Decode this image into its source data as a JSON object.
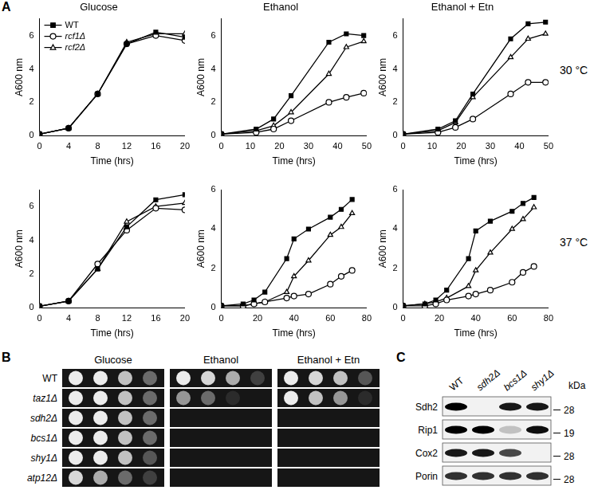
{
  "panel_labels": [
    "A",
    "B",
    "C"
  ],
  "chart_data": [
    {
      "type": "line",
      "title": "Glucose",
      "x_label": "Time (hrs)",
      "y_label": "A600 nm",
      "x": [
        0,
        4,
        8,
        12,
        16,
        20
      ],
      "xlim": [
        0,
        20
      ],
      "xticks": [
        0,
        4,
        8,
        12,
        16,
        20
      ],
      "ylim": [
        0,
        7
      ],
      "yticks": [
        0,
        2,
        4,
        6
      ],
      "grid": false,
      "legend": "upper left",
      "series": [
        {
          "name": "WT",
          "color": "#000000",
          "marker": "filled_square",
          "values": [
            0.1,
            0.45,
            2.5,
            5.5,
            6.2,
            5.9
          ]
        },
        {
          "name": "rcf1Δ",
          "color": "#000000",
          "marker": "open_circle",
          "values": [
            0.1,
            0.45,
            2.5,
            5.5,
            6.0,
            5.7
          ]
        },
        {
          "name": "rcf2Δ",
          "color": "#000000",
          "marker": "open_triangle",
          "values": [
            0.1,
            0.45,
            2.5,
            5.6,
            6.1,
            6.1
          ]
        }
      ]
    },
    {
      "type": "line",
      "title": "Ethanol",
      "x_label": "Time (hrs)",
      "y_label": "A600 nm",
      "x": [
        0,
        12,
        18,
        24,
        37,
        43,
        49
      ],
      "xlim": [
        0,
        50
      ],
      "xticks": [
        0,
        10,
        20,
        30,
        40,
        50
      ],
      "ylim": [
        0,
        7
      ],
      "yticks": [
        0,
        2,
        4,
        6
      ],
      "grid": false,
      "series": [
        {
          "name": "WT",
          "color": "#000000",
          "marker": "filled_square",
          "values": [
            0.1,
            0.4,
            1.0,
            2.4,
            5.6,
            6.1,
            6.0
          ]
        },
        {
          "name": "rcf1Δ",
          "color": "#000000",
          "marker": "open_circle",
          "values": [
            0.1,
            0.2,
            0.4,
            0.9,
            2.0,
            2.3,
            2.55
          ]
        },
        {
          "name": "rcf2Δ",
          "color": "#000000",
          "marker": "open_triangle",
          "values": [
            0.1,
            0.3,
            0.6,
            1.4,
            3.7,
            5.3,
            5.65
          ]
        }
      ]
    },
    {
      "type": "line",
      "title": "Ethanol + Etn",
      "x_label": "Time (hrs)",
      "y_label": "A600 nm",
      "annotation": "30 °C",
      "x": [
        0,
        12,
        18,
        24,
        37,
        43,
        49
      ],
      "xlim": [
        0,
        50
      ],
      "xticks": [
        0,
        10,
        20,
        30,
        40,
        50
      ],
      "ylim": [
        0,
        7
      ],
      "yticks": [
        0,
        2,
        4,
        6
      ],
      "grid": false,
      "series": [
        {
          "name": "WT",
          "color": "#000000",
          "marker": "filled_square",
          "values": [
            0.1,
            0.4,
            0.9,
            2.5,
            5.8,
            6.7,
            6.8
          ]
        },
        {
          "name": "rcf1Δ",
          "color": "#000000",
          "marker": "open_circle",
          "values": [
            0.1,
            0.2,
            0.5,
            1.0,
            2.5,
            3.2,
            3.2
          ]
        },
        {
          "name": "rcf2Δ",
          "color": "#000000",
          "marker": "open_triangle",
          "values": [
            0.1,
            0.3,
            0.8,
            2.3,
            4.7,
            5.8,
            6.1
          ]
        }
      ]
    },
    {
      "type": "line",
      "x_label": "Time (hrs)",
      "y_label": "A600 nm",
      "x": [
        0,
        4,
        8,
        12,
        16,
        20
      ],
      "xlim": [
        0,
        20
      ],
      "xticks": [
        0,
        4,
        8,
        12,
        16,
        20
      ],
      "ylim": [
        0,
        7
      ],
      "yticks": [
        0,
        2,
        4,
        6
      ],
      "grid": false,
      "series": [
        {
          "name": "WT",
          "color": "#000000",
          "marker": "filled_square",
          "values": [
            0.1,
            0.4,
            2.3,
            4.8,
            6.4,
            6.7
          ]
        },
        {
          "name": "rcf1Δ",
          "color": "#000000",
          "marker": "open_circle",
          "values": [
            0.1,
            0.4,
            2.6,
            4.6,
            5.9,
            5.8
          ]
        },
        {
          "name": "rcf2Δ",
          "color": "#000000",
          "marker": "open_triangle",
          "values": [
            0.1,
            0.4,
            2.3,
            5.1,
            6.0,
            6.2
          ]
        }
      ]
    },
    {
      "type": "line",
      "x_label": "Time (hrs)",
      "y_label": "A600 nm",
      "x": [
        0,
        12,
        18,
        24,
        36,
        40,
        48,
        60,
        66,
        72
      ],
      "xlim": [
        0,
        80
      ],
      "xticks": [
        0,
        20,
        40,
        60,
        80
      ],
      "ylim": [
        0,
        6
      ],
      "yticks": [
        0,
        2,
        4,
        6
      ],
      "grid": false,
      "series": [
        {
          "name": "WT",
          "color": "#000000",
          "marker": "filled_square",
          "values": [
            0.1,
            0.2,
            0.4,
            0.8,
            2.5,
            3.5,
            4.0,
            4.6,
            5.0,
            5.5
          ]
        },
        {
          "name": "rcf1Δ",
          "color": "#000000",
          "marker": "open_circle",
          "values": [
            0.1,
            0.1,
            0.2,
            0.3,
            0.5,
            0.6,
            0.7,
            1.2,
            1.6,
            1.9
          ]
        },
        {
          "name": "rcf2Δ",
          "color": "#000000",
          "marker": "open_triangle",
          "values": [
            0.1,
            0.1,
            0.2,
            0.3,
            0.8,
            1.6,
            2.4,
            3.7,
            4.1,
            4.8
          ]
        }
      ]
    },
    {
      "type": "line",
      "x_label": "Time (hrs)",
      "y_label": "A600 nm",
      "annotation": "37 °C",
      "x": [
        0,
        12,
        18,
        24,
        36,
        40,
        48,
        60,
        66,
        72
      ],
      "xlim": [
        0,
        80
      ],
      "xticks": [
        0,
        20,
        40,
        60,
        80
      ],
      "ylim": [
        0,
        6
      ],
      "yticks": [
        0,
        2,
        4,
        6
      ],
      "grid": false,
      "series": [
        {
          "name": "WT",
          "color": "#000000",
          "marker": "filled_square",
          "values": [
            0.1,
            0.2,
            0.4,
            0.9,
            2.5,
            3.9,
            4.4,
            4.9,
            5.3,
            5.6
          ]
        },
        {
          "name": "rcf1Δ",
          "color": "#000000",
          "marker": "open_circle",
          "values": [
            0.1,
            0.1,
            0.2,
            0.4,
            0.6,
            0.7,
            0.9,
            1.3,
            1.8,
            2.1
          ]
        },
        {
          "name": "rcf2Δ",
          "color": "#000000",
          "marker": "open_triangle",
          "values": [
            0.1,
            0.2,
            0.3,
            0.5,
            1.1,
            1.9,
            2.8,
            4.0,
            4.5,
            5.1
          ]
        }
      ]
    }
  ],
  "spot_assay": {
    "conditions": [
      "Glucose",
      "Ethanol",
      "Ethanol + Etn"
    ],
    "strains": [
      {
        "name": "WT",
        "growth": [
          [
            1,
            1,
            0.8,
            0.4
          ],
          [
            1,
            0.9,
            0.7,
            0.2
          ],
          [
            1,
            0.9,
            0.8,
            0.3
          ]
        ]
      },
      {
        "name": "taz1Δ",
        "growth": [
          [
            1,
            1,
            0.8,
            0.4
          ],
          [
            0.6,
            0.4,
            0.1,
            0
          ],
          [
            1,
            0.8,
            0.6,
            0.1
          ]
        ]
      },
      {
        "name": "sdh2Δ",
        "growth": [
          [
            1,
            1,
            0.8,
            0.4
          ],
          [
            0,
            0,
            0,
            0
          ],
          [
            0,
            0,
            0,
            0
          ]
        ]
      },
      {
        "name": "bcs1Δ",
        "growth": [
          [
            1,
            1,
            0.8,
            0.4
          ],
          [
            0,
            0,
            0,
            0
          ],
          [
            0,
            0,
            0,
            0
          ]
        ]
      },
      {
        "name": "shy1Δ",
        "growth": [
          [
            1,
            1,
            0.8,
            0.3
          ],
          [
            0,
            0,
            0,
            0
          ],
          [
            0,
            0,
            0,
            0
          ]
        ]
      },
      {
        "name": "atp12Δ",
        "growth": [
          [
            0.9,
            0.7,
            0.4,
            0.2
          ],
          [
            0,
            0,
            0,
            0
          ],
          [
            0,
            0,
            0,
            0
          ]
        ]
      }
    ]
  },
  "western_blot": {
    "lanes": [
      "WT",
      "sdh2Δ",
      "bcs1Δ",
      "shy1Δ"
    ],
    "unit": "kDa",
    "rows": [
      {
        "protein": "Sdh2",
        "marker": 28,
        "intensity": [
          1,
          0,
          0.9,
          0.9
        ]
      },
      {
        "protein": "Rip1",
        "marker": 19,
        "intensity": [
          1,
          1,
          0.2,
          0.95
        ]
      },
      {
        "protein": "Cox2",
        "marker": 28,
        "intensity": [
          0.9,
          0.9,
          0.7,
          0
        ]
      },
      {
        "protein": "Porin",
        "marker": 28,
        "intensity": [
          0.8,
          0.8,
          0.8,
          0.8
        ]
      }
    ]
  }
}
